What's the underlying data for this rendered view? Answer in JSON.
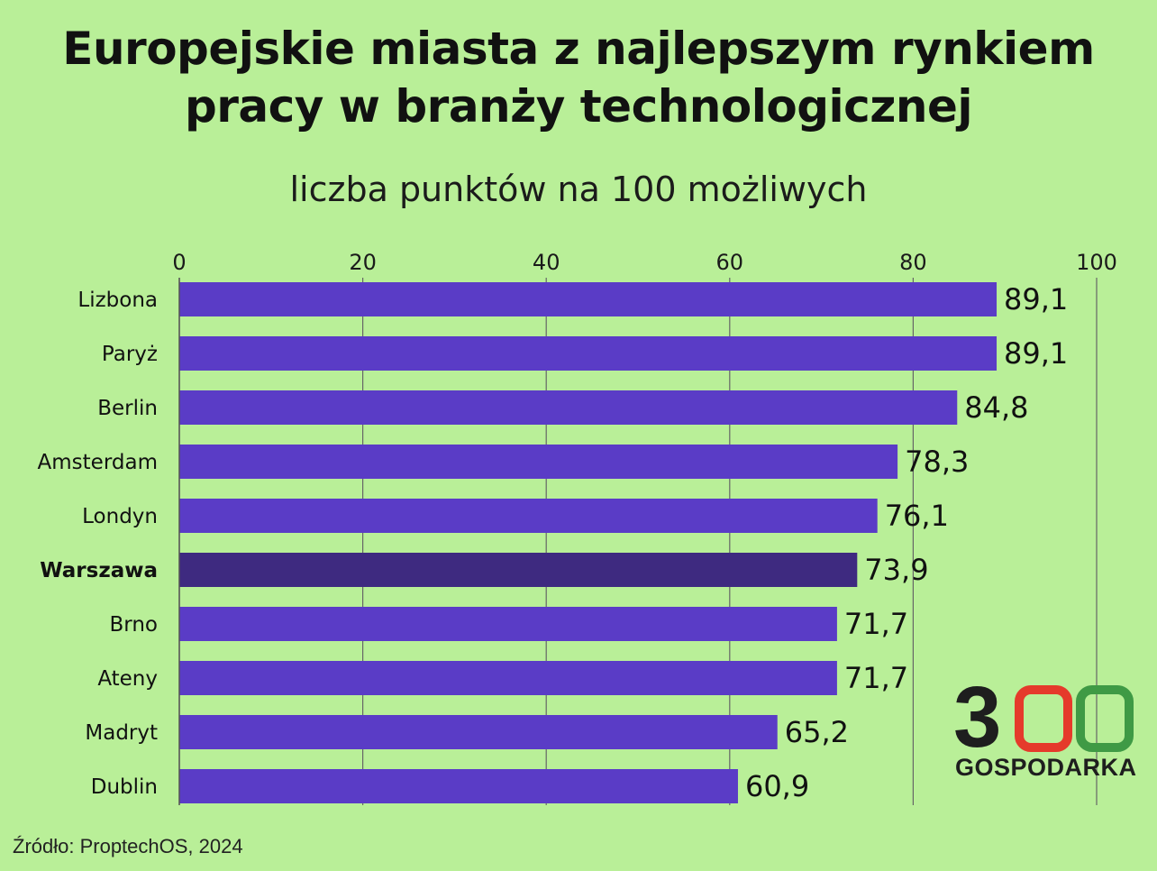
{
  "title_line1": "Europejskie miasta z najlepszym rynkiem",
  "title_line2": "pracy w branży technologicznej",
  "subtitle": "liczba punktów na 100 możliwych",
  "source": "Źródło: ProptechOS, 2024",
  "logo": {
    "number": "300",
    "name": "GOSPODARKA"
  },
  "colors": {
    "background": "#b9ef98",
    "bar": "#5a3cc6",
    "highlight_bar": "#3e2a80",
    "grid": "#666666",
    "logo_red": "#e53a2b",
    "logo_green": "#3f9a45"
  },
  "chart_data": {
    "type": "bar",
    "orientation": "horizontal",
    "categories": [
      "Lizbona",
      "Paryż",
      "Berlin",
      "Amsterdam",
      "Londyn",
      "Warszawa",
      "Brno",
      "Ateny",
      "Madryt",
      "Dublin"
    ],
    "values": [
      89.1,
      89.1,
      84.8,
      78.3,
      76.1,
      73.9,
      71.7,
      71.7,
      65.2,
      60.9
    ],
    "value_labels": [
      "89,1",
      "89,1",
      "84,8",
      "78,3",
      "76,1",
      "73,9",
      "71,7",
      "71,7",
      "65,2",
      "60,9"
    ],
    "highlight": "Warszawa",
    "xlim": [
      0,
      100
    ],
    "xticks": [
      0,
      20,
      40,
      60,
      80,
      100
    ],
    "xtick_labels": [
      "0",
      "20",
      "40",
      "60",
      "80",
      "100"
    ],
    "axis_position": "top",
    "grid": true
  }
}
